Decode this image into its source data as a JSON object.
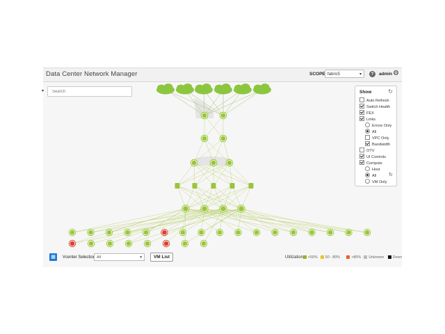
{
  "app": {
    "title": "Data Center Network Manager"
  },
  "header": {
    "scope_label": "SCOPE:",
    "scope_value": "fabric5",
    "user": "admin"
  },
  "search": {
    "placeholder": "Search"
  },
  "show_panel": {
    "title": "Show",
    "options": [
      {
        "label": "Auto Refresh",
        "kind": "checkbox",
        "checked": false,
        "indent": 0
      },
      {
        "label": "Switch Health",
        "kind": "checkbox",
        "checked": true,
        "indent": 0
      },
      {
        "label": "FEX",
        "kind": "checkbox",
        "checked": true,
        "indent": 0
      },
      {
        "label": "Links",
        "kind": "checkbox",
        "checked": true,
        "indent": 0
      },
      {
        "label": "Errors Only",
        "kind": "radio",
        "checked": false,
        "indent": 1
      },
      {
        "label": "All",
        "kind": "radio",
        "checked": true,
        "indent": 1
      },
      {
        "label": "VPC Only",
        "kind": "checkbox",
        "checked": false,
        "indent": 1
      },
      {
        "label": "Bandwidth",
        "kind": "checkbox",
        "checked": true,
        "indent": 1
      },
      {
        "label": "OTV",
        "kind": "checkbox",
        "checked": false,
        "indent": 0
      },
      {
        "label": "UI Controls",
        "kind": "checkbox",
        "checked": true,
        "indent": 0
      },
      {
        "label": "Compute",
        "kind": "checkbox",
        "checked": true,
        "indent": 0
      },
      {
        "label": "Host",
        "kind": "radio",
        "checked": false,
        "indent": 1
      },
      {
        "label": "All",
        "kind": "radio",
        "checked": true,
        "indent": 1
      },
      {
        "label": "VM Only",
        "kind": "radio",
        "checked": false,
        "indent": 1
      }
    ]
  },
  "bottom": {
    "vcenter_label": "Vcenter Selection :",
    "vcenter_value": "All",
    "vm_list_label": "VM List",
    "utilization_label": "Utilization:",
    "legend": [
      {
        "label": "<50%",
        "color": "#8fb827"
      },
      {
        "label": "50 - 80%",
        "color": "#f0c419"
      },
      {
        "label": ">80%",
        "color": "#e8632c"
      },
      {
        "label": "Unknown",
        "color": "#bbbbbb"
      },
      {
        "label": "Down",
        "color": "#111111"
      }
    ]
  },
  "colors": {
    "node_green": "#9ac53a",
    "node_red": "#d9412e",
    "cloud": "#8cc63f",
    "link": "#b9cf6a",
    "accent_blue": "#1c7ad6"
  },
  "icons": {
    "help": "help-icon",
    "settings": "gear-icon",
    "refresh": "refresh-icon",
    "vm": "vm-list-icon"
  }
}
